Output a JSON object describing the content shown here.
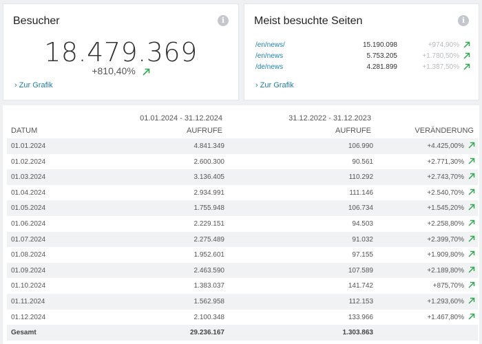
{
  "visitors_card": {
    "title": "Besucher",
    "info_icon": "info-icon",
    "value": "18.479.369",
    "change": "+810,40%",
    "link": "Zur Grafik"
  },
  "pages_card": {
    "title": "Meist besuchte Seiten",
    "info_icon": "info-icon",
    "rows": [
      {
        "url": "/en/news/",
        "value": "15.190.098",
        "change": "+974,90%"
      },
      {
        "url": "/en/news",
        "value": "5.753.205",
        "change": "+1.780,50%"
      },
      {
        "url": "/de/news",
        "value": "4.281.899",
        "change": "+1.387,50%"
      }
    ],
    "link": "Zur Grafik"
  },
  "table": {
    "period1": "01.01.2024 - 31.12.2024",
    "period2": "31.12.2022 - 31.12.2023",
    "headers": {
      "date": "DATUM",
      "views1": "AUFRUFE",
      "views2": "AUFRUFE",
      "change": "VERÄNDERUNG"
    },
    "rows": [
      {
        "date": "01.01.2024",
        "v1": "4.841.349",
        "v2": "106.990",
        "chg": "+4.425,00%"
      },
      {
        "date": "01.02.2024",
        "v1": "2.600.300",
        "v2": "90.561",
        "chg": "+2.771,30%"
      },
      {
        "date": "01.03.2024",
        "v1": "3.136.405",
        "v2": "110.292",
        "chg": "+2.743,70%"
      },
      {
        "date": "01.04.2024",
        "v1": "2.934.991",
        "v2": "111.146",
        "chg": "+2.540,70%"
      },
      {
        "date": "01.05.2024",
        "v1": "1.755.948",
        "v2": "106.734",
        "chg": "+1.545,20%"
      },
      {
        "date": "01.06.2024",
        "v1": "2.229.151",
        "v2": "94.503",
        "chg": "+2.258,80%"
      },
      {
        "date": "01.07.2024",
        "v1": "2.275.489",
        "v2": "91.032",
        "chg": "+2.399,70%"
      },
      {
        "date": "01.08.2024",
        "v1": "1.952.601",
        "v2": "97.155",
        "chg": "+1.909,80%"
      },
      {
        "date": "01.09.2024",
        "v1": "2.463.590",
        "v2": "107.589",
        "chg": "+2.189,80%"
      },
      {
        "date": "01.10.2024",
        "v1": "1.383.037",
        "v2": "141.742",
        "chg": "+875,70%"
      },
      {
        "date": "01.11.2024",
        "v1": "1.562.958",
        "v2": "112.153",
        "chg": "+1.293,60%"
      },
      {
        "date": "01.12.2024",
        "v1": "2.100.348",
        "v2": "133.966",
        "chg": "+1.467,80%"
      }
    ],
    "total": {
      "label": "Gesamt",
      "v1": "29.236.167",
      "v2": "1.303.863"
    }
  },
  "colors": {
    "accent": "#1a7fa8",
    "up_arrow": "#2fa84f",
    "row_alt": "#f1f2f4"
  }
}
